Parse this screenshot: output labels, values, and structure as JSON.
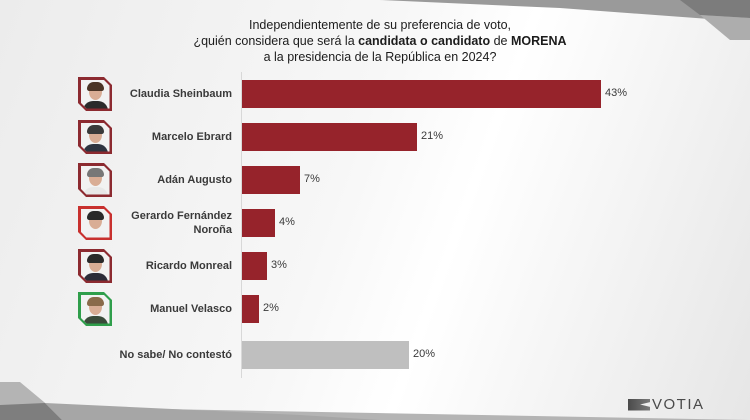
{
  "title": {
    "line1": "Independientemente de su preferencia de voto,",
    "line2_pre": "¿quién considera que será la ",
    "line2_bold1": "candidata o candidato",
    "line2_mid": " de ",
    "line2_bold2": "MORENA",
    "line3": "a la presidencia de la República en 2024?"
  },
  "brand": {
    "logo_text": "VOTIA"
  },
  "colors": {
    "bar_primary": "#96232b",
    "bar_unknown": "#bfbfbf",
    "frame_morena_dark": "#8c2a30",
    "frame_red": "#c8302e",
    "frame_green": "#2f9e4b"
  },
  "chart_data": {
    "type": "bar",
    "orientation": "horizontal",
    "title": "Independientemente de su preferencia de voto, ¿quién considera que será la candidata o candidato de MORENA a la presidencia de la República en 2024?",
    "categories": [
      "Claudia Sheinbaum",
      "Marcelo Ebrard",
      "Adán Augusto",
      "Gerardo Fernández Noroña",
      "Ricardo Monreal",
      "Manuel Velasco",
      "No sabe/ No contestó"
    ],
    "values": [
      43,
      21,
      7,
      4,
      3,
      2,
      20
    ],
    "value_labels": [
      "43%",
      "21%",
      "7%",
      "4%",
      "3%",
      "2%",
      "20%"
    ],
    "unit": "%",
    "xlabel": "",
    "ylabel": "",
    "grid": false,
    "legend": null
  },
  "rows": [
    {
      "name": "Claudia Sheinbaum",
      "label_lines": [
        "Claudia Sheinbaum"
      ],
      "value": "43%",
      "pct": 43,
      "frame": "#8c2a30",
      "hair": "#4b3426",
      "body": "#2b2b2b",
      "photo": true
    },
    {
      "name": "Marcelo Ebrard",
      "label_lines": [
        "Marcelo Ebrard"
      ],
      "value": "21%",
      "pct": 21,
      "frame": "#8c2a30",
      "hair": "#3a3a3a",
      "body": "#2e3440",
      "photo": true
    },
    {
      "name": "Adán Augusto",
      "label_lines": [
        "Adán Augusto"
      ],
      "value": "7%",
      "pct": 7,
      "frame": "#8c2a30",
      "hair": "#777777",
      "body": "#e8e8e8",
      "photo": true
    },
    {
      "name": "Gerardo Fernández Noroña",
      "label_lines": [
        "Gerardo Fernández",
        "Noroña"
      ],
      "value": "4%",
      "pct": 4,
      "frame": "#c8302e",
      "hair": "#2a2a2a",
      "body": "#f0f0f0",
      "photo": true
    },
    {
      "name": "Ricardo Monreal",
      "label_lines": [
        "Ricardo Monreal"
      ],
      "value": "3%",
      "pct": 3,
      "frame": "#8c2a30",
      "hair": "#2a2a2a",
      "body": "#2c2c38",
      "photo": true
    },
    {
      "name": "Manuel Velasco",
      "label_lines": [
        "Manuel Velasco"
      ],
      "value": "2%",
      "pct": 2,
      "frame": "#2f9e4b",
      "hair": "#8a6a4a",
      "body": "#3a4a3a",
      "photo": true
    },
    {
      "name": "No sabe/ No contestó",
      "label_lines": [
        "No sabe/ No contestó"
      ],
      "value": "20%",
      "pct": 20,
      "photo": false
    }
  ]
}
